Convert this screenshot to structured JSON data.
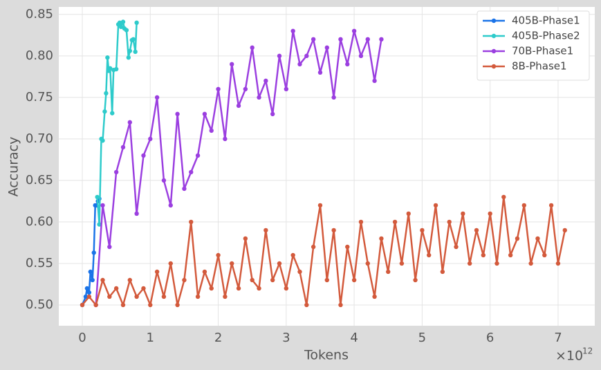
{
  "chart_data": {
    "type": "line",
    "xlabel": "Tokens",
    "ylabel": "Accuracy",
    "x_multiplier": {
      "base": "×10",
      "exponent": "12"
    },
    "xlim": [
      -0.346,
      7.54
    ],
    "ylim": [
      0.475,
      0.859
    ],
    "xticks": [
      0,
      1,
      2,
      3,
      4,
      5,
      6,
      7
    ],
    "yticks": [
      {
        "value": 0.5,
        "label": "0.50"
      },
      {
        "value": 0.55,
        "label": "0.55"
      },
      {
        "value": 0.6,
        "label": "0.60"
      },
      {
        "value": 0.65,
        "label": "0.65"
      },
      {
        "value": 0.7,
        "label": "0.70"
      },
      {
        "value": 0.75,
        "label": "0.75"
      },
      {
        "value": 0.8,
        "label": "0.80"
      },
      {
        "value": 0.85,
        "label": "0.85"
      }
    ],
    "grid": true,
    "legend": "upper right",
    "series": [
      {
        "name": "405B-Phase1",
        "color": "#1a73e8",
        "x": [
          0.0,
          0.05,
          0.07,
          0.1,
          0.12,
          0.15,
          0.17,
          0.19,
          0.21,
          0.23,
          0.25
        ],
        "values": [
          0.5,
          0.51,
          0.52,
          0.515,
          0.54,
          0.53,
          0.563,
          0.62,
          0.62,
          0.625,
          0.628
        ]
      },
      {
        "name": "405B-Phase2",
        "color": "#2ecbcb",
        "x": [
          0.22,
          0.25,
          0.28,
          0.3,
          0.33,
          0.35,
          0.37,
          0.39,
          0.41,
          0.44,
          0.46,
          0.5,
          0.53,
          0.55,
          0.57,
          0.6,
          0.62,
          0.65,
          0.68,
          0.7,
          0.73,
          0.75,
          0.78,
          0.8
        ],
        "values": [
          0.63,
          0.597,
          0.7,
          0.698,
          0.733,
          0.755,
          0.798,
          0.782,
          0.785,
          0.731,
          0.783,
          0.784,
          0.838,
          0.84,
          0.835,
          0.841,
          0.833,
          0.831,
          0.798,
          0.806,
          0.819,
          0.82,
          0.805,
          0.84
        ]
      },
      {
        "name": "70B-Phase1",
        "color": "#9b3fe0",
        "x": [
          0.2,
          0.3,
          0.4,
          0.5,
          0.6,
          0.7,
          0.8,
          0.9,
          1.0,
          1.1,
          1.2,
          1.3,
          1.4,
          1.5,
          1.6,
          1.7,
          1.8,
          1.9,
          2.0,
          2.1,
          2.2,
          2.3,
          2.4,
          2.5,
          2.6,
          2.7,
          2.8,
          2.9,
          3.0,
          3.1,
          3.2,
          3.3,
          3.4,
          3.5,
          3.6,
          3.7,
          3.8,
          3.9,
          4.0,
          4.1,
          4.2,
          4.3,
          4.4
        ],
        "values": [
          0.5,
          0.62,
          0.57,
          0.66,
          0.69,
          0.72,
          0.61,
          0.68,
          0.7,
          0.75,
          0.65,
          0.62,
          0.73,
          0.64,
          0.66,
          0.68,
          0.73,
          0.71,
          0.76,
          0.7,
          0.79,
          0.74,
          0.76,
          0.81,
          0.75,
          0.77,
          0.73,
          0.8,
          0.76,
          0.83,
          0.79,
          0.8,
          0.82,
          0.78,
          0.81,
          0.75,
          0.82,
          0.79,
          0.83,
          0.8,
          0.82,
          0.77,
          0.82
        ]
      },
      {
        "name": "8B-Phase1",
        "color": "#d35a3c",
        "x": [
          0.0,
          0.1,
          0.2,
          0.3,
          0.4,
          0.5,
          0.6,
          0.7,
          0.8,
          0.9,
          1.0,
          1.1,
          1.2,
          1.3,
          1.4,
          1.5,
          1.6,
          1.7,
          1.8,
          1.9,
          2.0,
          2.1,
          2.2,
          2.3,
          2.4,
          2.5,
          2.6,
          2.7,
          2.8,
          2.9,
          3.0,
          3.1,
          3.2,
          3.3,
          3.4,
          3.5,
          3.6,
          3.7,
          3.8,
          3.9,
          4.0,
          4.1,
          4.2,
          4.3,
          4.4,
          4.5,
          4.6,
          4.7,
          4.8,
          4.9,
          5.0,
          5.1,
          5.2,
          5.3,
          5.4,
          5.5,
          5.6,
          5.7,
          5.8,
          5.9,
          6.0,
          6.1,
          6.2,
          6.3,
          6.4,
          6.5,
          6.6,
          6.7,
          6.8,
          6.9,
          7.0,
          7.1
        ],
        "values": [
          0.5,
          0.51,
          0.5,
          0.53,
          0.51,
          0.52,
          0.5,
          0.53,
          0.51,
          0.52,
          0.5,
          0.54,
          0.51,
          0.55,
          0.5,
          0.53,
          0.6,
          0.51,
          0.54,
          0.52,
          0.56,
          0.51,
          0.55,
          0.52,
          0.58,
          0.53,
          0.52,
          0.59,
          0.53,
          0.55,
          0.52,
          0.56,
          0.54,
          0.5,
          0.57,
          0.62,
          0.53,
          0.59,
          0.5,
          0.57,
          0.53,
          0.6,
          0.55,
          0.51,
          0.58,
          0.54,
          0.6,
          0.55,
          0.61,
          0.53,
          0.59,
          0.56,
          0.62,
          0.54,
          0.6,
          0.57,
          0.61,
          0.55,
          0.59,
          0.56,
          0.61,
          0.55,
          0.63,
          0.56,
          0.58,
          0.62,
          0.55,
          0.58,
          0.56,
          0.62,
          0.55,
          0.59
        ]
      }
    ]
  }
}
